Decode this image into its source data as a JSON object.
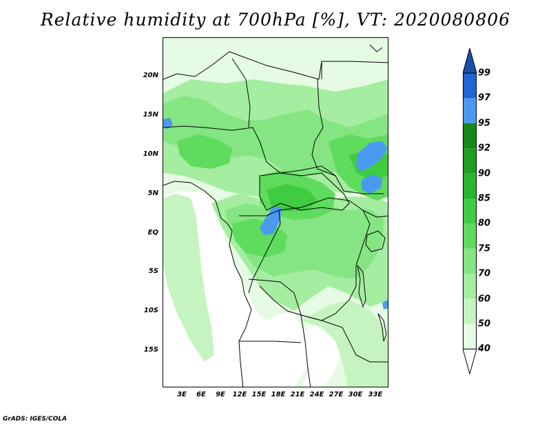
{
  "title": "Relative humidity at 700hPa [%], VT: 2020080806",
  "footer": "GrADS: IGES/COLA",
  "axes": {
    "lat_labels": [
      "20N",
      "15N",
      "10N",
      "5N",
      "EQ",
      "5S",
      "10S",
      "15S"
    ],
    "lon_labels": [
      "3E",
      "6E",
      "9E",
      "12E",
      "15E",
      "18E",
      "21E",
      "24E",
      "27E",
      "30E",
      "33E"
    ]
  },
  "colorbar": {
    "levels": [
      "40",
      "50",
      "60",
      "70",
      "75",
      "80",
      "85",
      "90",
      "92",
      "95",
      "97",
      "99"
    ],
    "colors": [
      "#ffffff",
      "#e6fbe3",
      "#c6f4c0",
      "#a5eda0",
      "#84e582",
      "#5fdb5e",
      "#3fcc40",
      "#2ab52c",
      "#1f9e22",
      "#168a18",
      "#4a9bf0",
      "#2066d6",
      "#1a4fa8"
    ]
  },
  "fill_colors": {
    "dry": "#ffffff",
    "light": "#e6fbe3",
    "pale": "#c6f4c0",
    "mid": "#a5eda0",
    "green": "#84e582",
    "strong": "#5fdb5e",
    "deep": "#3fcc40",
    "saturated": "#4a9bf0"
  }
}
